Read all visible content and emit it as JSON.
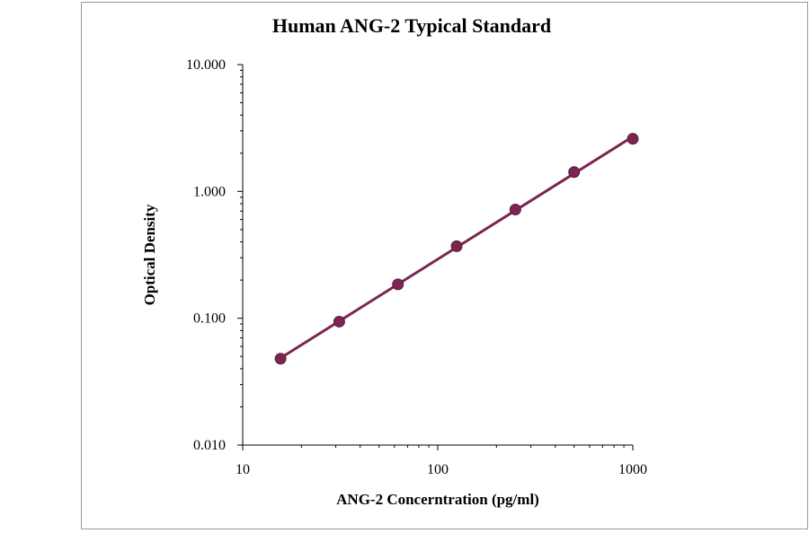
{
  "chart_data": {
    "type": "scatter",
    "title": "Human ANG-2 Typical Standard",
    "xlabel": "ANG-2 Concerntration (pg/ml)",
    "ylabel": "Optical Density",
    "x_scale": "log",
    "y_scale": "log",
    "xlim": [
      10,
      1000
    ],
    "ylim": [
      0.01,
      10
    ],
    "x_ticks": [
      10,
      100,
      1000
    ],
    "x_tick_labels": [
      "10",
      "100",
      "1000"
    ],
    "y_ticks": [
      0.01,
      0.1,
      1,
      10
    ],
    "y_tick_labels": [
      "0.010",
      "0.100",
      "1.000",
      "10.000"
    ],
    "grid": false,
    "legend": "none",
    "series": [
      {
        "color": "#7a2650",
        "trendline": "power",
        "x": [
          15.63,
          31.25,
          62.5,
          125,
          250,
          500,
          1000
        ],
        "y": [
          0.048,
          0.094,
          0.185,
          0.37,
          0.72,
          1.42,
          2.6
        ]
      }
    ]
  }
}
